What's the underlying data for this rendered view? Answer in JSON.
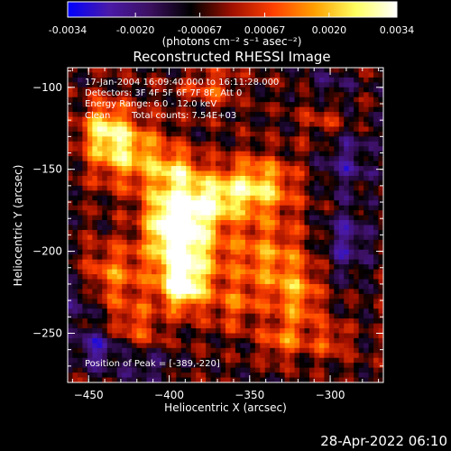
{
  "chart_data": {
    "type": "heatmap",
    "title": "Reconstructed RHESSI Image",
    "xlabel": "Heliocentric X (arcsec)",
    "ylabel": "Heliocentric Y (arcsec)",
    "xlim": [
      -463,
      -267
    ],
    "ylim": [
      -280,
      -88
    ],
    "x_ticks": [
      -450,
      -400,
      -350,
      -300
    ],
    "y_ticks": [
      -100,
      -150,
      -200,
      -250
    ],
    "colorbar": {
      "range": [
        -0.0034,
        0.0034
      ],
      "ticks": [
        "-0.0034",
        "-0.0020",
        "-0.00067",
        "0.00067",
        "0.0020",
        "0.0034"
      ],
      "units_label": "(photons cm⁻² s⁻¹ asec⁻²)",
      "colors": [
        "#0000ff",
        "#4a1aa8",
        "#3b1060",
        "#000000",
        "#a01000",
        "#ff4000",
        "#ffa000",
        "#ffff60",
        "#ffffff"
      ]
    },
    "annotations": {
      "time_range": "17-Jan-2004 16:09:40.000 to 16:11:28.000",
      "detectors": "Detectors: 3F 4F 5F 6F 7F 8F, Att 0",
      "energy_range": "Energy Range: 6.0 - 12.0 keV",
      "method": "Clean",
      "total_counts": "Total counts: 7.54E+03",
      "peak": "Position of Peak = [-389,-220]"
    },
    "intensity_sources": [
      {
        "x": -389,
        "y": -195,
        "peak": 0.0034,
        "sx": 14,
        "sy": 22
      },
      {
        "x": -392,
        "y": -222,
        "peak": 0.003,
        "sx": 9,
        "sy": 9
      },
      {
        "x": -400,
        "y": -180,
        "peak": 0.0026,
        "sx": 12,
        "sy": 18
      },
      {
        "x": -345,
        "y": -160,
        "peak": 0.0028,
        "sx": 16,
        "sy": 12
      },
      {
        "x": -372,
        "y": -168,
        "peak": 0.0022,
        "sx": 14,
        "sy": 10
      },
      {
        "x": -425,
        "y": -140,
        "peak": 0.0026,
        "sx": 16,
        "sy": 14
      },
      {
        "x": -440,
        "y": -125,
        "peak": 0.0024,
        "sx": 10,
        "sy": 12
      },
      {
        "x": -340,
        "y": -205,
        "peak": 0.002,
        "sx": 18,
        "sy": 18
      },
      {
        "x": -320,
        "y": -230,
        "peak": 0.0018,
        "sx": 10,
        "sy": 14
      },
      {
        "x": -330,
        "y": -255,
        "peak": 0.0015,
        "sx": 10,
        "sy": 8
      },
      {
        "x": -300,
        "y": -255,
        "peak": 0.0013,
        "sx": 8,
        "sy": 8
      },
      {
        "x": -435,
        "y": -215,
        "peak": 0.0018,
        "sx": 14,
        "sy": 14
      },
      {
        "x": -420,
        "y": -245,
        "peak": 0.0014,
        "sx": 10,
        "sy": 10
      },
      {
        "x": -375,
        "y": -100,
        "peak": 0.0014,
        "sx": 12,
        "sy": 8
      },
      {
        "x": -305,
        "y": -120,
        "peak": 0.001,
        "sx": 10,
        "sy": 10
      },
      {
        "x": -395,
        "y": -150,
        "peak": 0.0016,
        "sx": 10,
        "sy": 8
      },
      {
        "x": -360,
        "y": -235,
        "peak": 0.0012,
        "sx": 10,
        "sy": 10
      },
      {
        "x": -445,
        "y": -260,
        "peak": -0.0018,
        "sx": 10,
        "sy": 8
      },
      {
        "x": -290,
        "y": -195,
        "peak": -0.0016,
        "sx": 10,
        "sy": 14
      },
      {
        "x": -290,
        "y": -145,
        "peak": -0.0014,
        "sx": 12,
        "sy": 14
      },
      {
        "x": -455,
        "y": -230,
        "peak": -0.0012,
        "sx": 8,
        "sy": 12
      },
      {
        "x": -300,
        "y": -100,
        "peak": -0.001,
        "sx": 10,
        "sy": 8
      },
      {
        "x": -415,
        "y": -270,
        "peak": -0.0012,
        "sx": 12,
        "sy": 6
      }
    ]
  },
  "footer": {
    "date": "28-Apr-2022 06:10"
  }
}
